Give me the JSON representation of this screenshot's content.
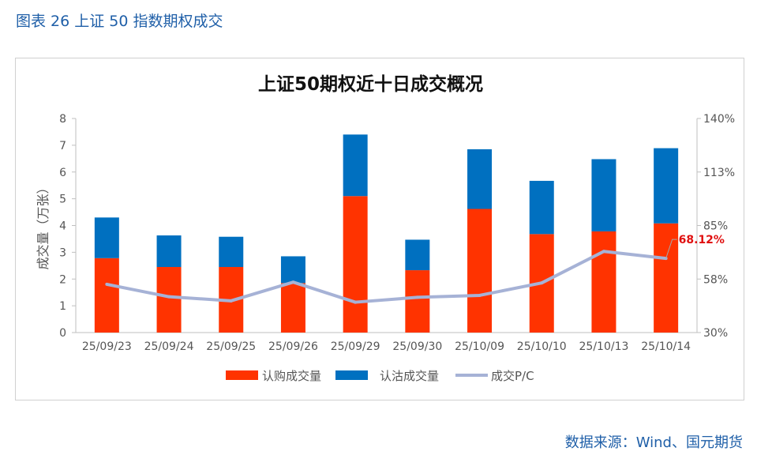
{
  "figure": {
    "caption": "图表 26 上证 50 指数期权成交",
    "source": "数据来源：Wind、国元期货"
  },
  "chart_data": {
    "type": "bar",
    "stacked": true,
    "title": "上证50期权近十日成交概况",
    "ylabel": "成交量（万张）",
    "ylim": [
      0,
      8
    ],
    "yticks": [
      "0",
      "1",
      "2",
      "3",
      "4",
      "5",
      "6",
      "7",
      "8"
    ],
    "y2lim": [
      30,
      140
    ],
    "y2ticks": [
      "30%",
      "58%",
      "85%",
      "113%",
      "140%"
    ],
    "categories": [
      "25/09/23",
      "25/09/24",
      "25/09/25",
      "25/09/26",
      "25/09/29",
      "25/09/30",
      "25/10/09",
      "25/10/10",
      "25/10/13",
      "25/10/14"
    ],
    "series": [
      {
        "name": "认购成交量",
        "type": "bar",
        "color": "#ff3300",
        "values": [
          2.78,
          2.45,
          2.45,
          1.85,
          5.1,
          2.33,
          4.62,
          3.68,
          3.78,
          4.08
        ]
      },
      {
        "name": "认沽成交量",
        "type": "bar",
        "color": "#0070c0",
        "values": [
          1.52,
          1.18,
          1.13,
          1.0,
          2.3,
          1.14,
          2.23,
          1.99,
          2.7,
          2.81
        ]
      },
      {
        "name": "成交P/C",
        "type": "line",
        "color": "#a6b2d6",
        "axis": "right",
        "values": [
          54.8,
          48.4,
          46.3,
          55.9,
          45.6,
          48.1,
          49.1,
          55.5,
          71.7,
          68.12
        ]
      }
    ],
    "annotation": {
      "label": "68.12%",
      "color": "#e01010"
    },
    "legend": "bottom",
    "grid": false
  }
}
